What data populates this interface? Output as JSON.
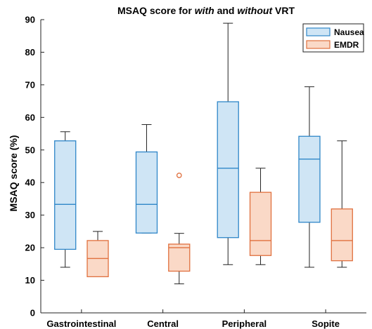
{
  "chart_data": {
    "type": "box",
    "title_parts": [
      {
        "text": "MSAQ score for ",
        "italic": false
      },
      {
        "text": "with",
        "italic": true
      },
      {
        "text": " and ",
        "italic": false
      },
      {
        "text": "without",
        "italic": true
      },
      {
        "text": " VRT",
        "italic": false
      }
    ],
    "ylabel": "MSAQ score (%)",
    "xlabel": "",
    "ylim": [
      0,
      90
    ],
    "yticks": [
      0,
      10,
      20,
      30,
      40,
      50,
      60,
      70,
      80,
      90
    ],
    "grid": false,
    "legend_position": "top-right",
    "categories": [
      "Gastrointestinal",
      "Central",
      "Peripheral",
      "Sopite"
    ],
    "series": [
      {
        "name": "Nausea",
        "color": "#2e86c8",
        "fill": "#cfe5f5",
        "boxes": [
          {
            "min": 14,
            "q1": 19.5,
            "median": 33.3,
            "q3": 52.8,
            "max": 55.6,
            "outliers": []
          },
          {
            "min": 24.5,
            "q1": 24.5,
            "median": 33.3,
            "q3": 49.4,
            "max": 57.8,
            "outliers": []
          },
          {
            "min": 14.8,
            "q1": 23.1,
            "median": 44.4,
            "q3": 64.8,
            "max": 88.9,
            "outliers": []
          },
          {
            "min": 14,
            "q1": 27.8,
            "median": 47.2,
            "q3": 54.2,
            "max": 69.4,
            "outliers": []
          }
        ]
      },
      {
        "name": "EMDR",
        "color": "#e0703e",
        "fill": "#fad9c7",
        "boxes": [
          {
            "min": 11.1,
            "q1": 11.1,
            "median": 16.7,
            "q3": 22.2,
            "max": 25,
            "outliers": []
          },
          {
            "min": 8.9,
            "q1": 12.8,
            "median": 20,
            "q3": 21.1,
            "max": 24.4,
            "outliers": [
              42.2
            ]
          },
          {
            "min": 14.8,
            "q1": 17.6,
            "median": 22.2,
            "q3": 37,
            "max": 44.4,
            "outliers": []
          },
          {
            "min": 14,
            "q1": 16,
            "median": 22.2,
            "q3": 31.9,
            "max": 52.8,
            "outliers": []
          }
        ]
      }
    ]
  }
}
